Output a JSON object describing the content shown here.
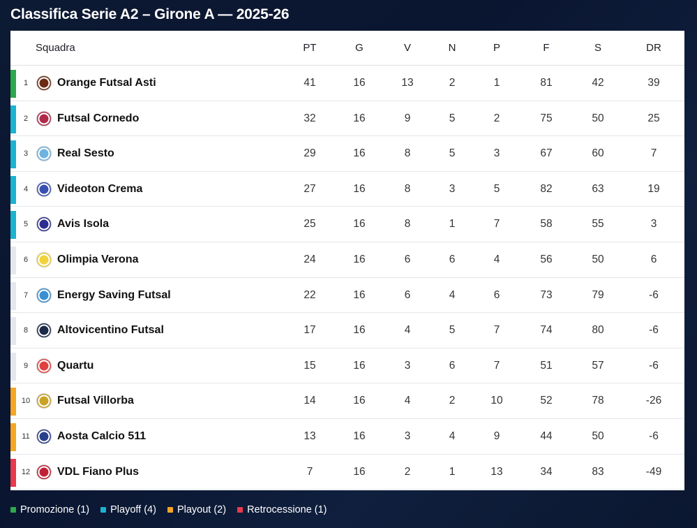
{
  "title": "Classifica Serie A2 – Girone A — 2025-26",
  "columns": {
    "team": "Squadra",
    "pt": "PT",
    "g": "G",
    "v": "V",
    "n": "N",
    "p": "P",
    "f": "F",
    "s": "S",
    "dr": "DR"
  },
  "colors": {
    "promozione": "#2ea84f",
    "playoff": "#1bb3cf",
    "playout": "#f5a623",
    "retrocessione": "#e8394d",
    "neutral": "#e4e7ed"
  },
  "rows": [
    {
      "pos": "1",
      "team": "Orange Futsal Asti",
      "pt": "41",
      "g": "16",
      "v": "13",
      "n": "2",
      "p": "1",
      "f": "81",
      "s": "42",
      "dr": "39",
      "zone": "promozione",
      "crest": "#6b2a12"
    },
    {
      "pos": "2",
      "team": "Futsal Cornedo",
      "pt": "32",
      "g": "16",
      "v": "9",
      "n": "5",
      "p": "2",
      "f": "75",
      "s": "50",
      "dr": "25",
      "zone": "playoff",
      "crest": "#b02a4a"
    },
    {
      "pos": "3",
      "team": "Real Sesto",
      "pt": "29",
      "g": "16",
      "v": "8",
      "n": "5",
      "p": "3",
      "f": "67",
      "s": "60",
      "dr": "7",
      "zone": "playoff",
      "crest": "#6fb3e0"
    },
    {
      "pos": "4",
      "team": "Videoton Crema",
      "pt": "27",
      "g": "16",
      "v": "8",
      "n": "3",
      "p": "5",
      "f": "82",
      "s": "63",
      "dr": "19",
      "zone": "playoff",
      "crest": "#3b4fb0"
    },
    {
      "pos": "5",
      "team": "Avis Isola",
      "pt": "25",
      "g": "16",
      "v": "8",
      "n": "1",
      "p": "7",
      "f": "58",
      "s": "55",
      "dr": "3",
      "zone": "playoff",
      "crest": "#2c2f8f"
    },
    {
      "pos": "6",
      "team": "Olimpia Verona",
      "pt": "24",
      "g": "16",
      "v": "6",
      "n": "6",
      "p": "4",
      "f": "56",
      "s": "50",
      "dr": "6",
      "zone": "neutral",
      "crest": "#f0d23a"
    },
    {
      "pos": "7",
      "team": "Energy Saving Futsal",
      "pt": "22",
      "g": "16",
      "v": "6",
      "n": "4",
      "p": "6",
      "f": "73",
      "s": "79",
      "dr": "-6",
      "zone": "neutral",
      "crest": "#3a8fd0"
    },
    {
      "pos": "8",
      "team": "Altovicentino Futsal",
      "pt": "17",
      "g": "16",
      "v": "4",
      "n": "5",
      "p": "7",
      "f": "74",
      "s": "80",
      "dr": "-6",
      "zone": "neutral",
      "crest": "#1d2a4a"
    },
    {
      "pos": "9",
      "team": "Quartu",
      "pt": "15",
      "g": "16",
      "v": "3",
      "n": "6",
      "p": "7",
      "f": "51",
      "s": "57",
      "dr": "-6",
      "zone": "neutral",
      "crest": "#e04040"
    },
    {
      "pos": "10",
      "team": "Futsal Villorba",
      "pt": "14",
      "g": "16",
      "v": "4",
      "n": "2",
      "p": "10",
      "f": "52",
      "s": "78",
      "dr": "-26",
      "zone": "playout",
      "crest": "#c9a227"
    },
    {
      "pos": "11",
      "team": "Aosta Calcio 511",
      "pt": "13",
      "g": "16",
      "v": "3",
      "n": "4",
      "p": "9",
      "f": "44",
      "s": "50",
      "dr": "-6",
      "zone": "playout",
      "crest": "#2a3f8a"
    },
    {
      "pos": "12",
      "team": "VDL Fiano Plus",
      "pt": "7",
      "g": "16",
      "v": "2",
      "n": "1",
      "p": "13",
      "f": "34",
      "s": "83",
      "dr": "-49",
      "zone": "retrocessione",
      "crest": "#c02036"
    }
  ],
  "legend": [
    {
      "label": "Promozione (1)",
      "zone": "promozione"
    },
    {
      "label": "Playoff (4)",
      "zone": "playoff"
    },
    {
      "label": "Playout (2)",
      "zone": "playout"
    },
    {
      "label": "Retrocessione (1)",
      "zone": "retrocessione"
    }
  ]
}
